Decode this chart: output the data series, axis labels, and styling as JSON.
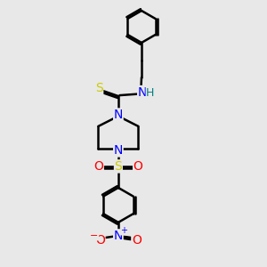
{
  "background_color": "#e8e8e8",
  "bond_color": "#000000",
  "atom_colors": {
    "N": "#0000ff",
    "S_thio": "#cccc00",
    "S_sulfonyl": "#cccc00",
    "O": "#ff0000",
    "H": "#008080",
    "C": "#000000"
  },
  "figsize": [
    3.0,
    3.0
  ],
  "dpi": 100
}
